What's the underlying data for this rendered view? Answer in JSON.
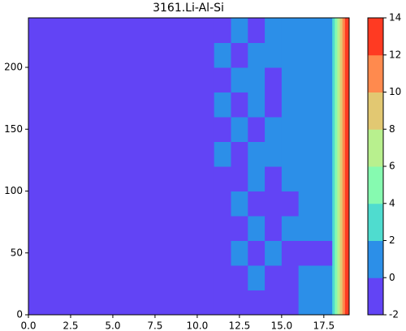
{
  "chart_data": {
    "type": "contour",
    "title": "3161.Li-Al-Si",
    "xbins": [
      0,
      11,
      12,
      13,
      14,
      15,
      16,
      18,
      18.15,
      18.3,
      18.45,
      18.6,
      18.75,
      18.9,
      19
    ],
    "ybins": [
      0,
      20,
      40,
      60,
      80,
      100,
      120,
      140,
      160,
      180,
      200,
      220,
      240
    ],
    "z": [
      [
        -1,
        -1,
        -1,
        -1,
        -1,
        -1,
        1,
        3,
        5,
        7,
        9,
        11,
        13,
        13
      ],
      [
        -1,
        -1,
        -1,
        1,
        -1,
        -1,
        1,
        3,
        5,
        7,
        9,
        11,
        13,
        13
      ],
      [
        -1,
        -1,
        1,
        -1,
        1,
        -1,
        -1,
        3,
        5,
        7,
        9,
        11,
        13,
        13
      ],
      [
        -1,
        -1,
        -1,
        1,
        -1,
        1,
        1,
        3,
        5,
        7,
        9,
        11,
        13,
        13
      ],
      [
        -1,
        -1,
        1,
        -1,
        -1,
        -1,
        1,
        3,
        5,
        7,
        9,
        11,
        13,
        13
      ],
      [
        -1,
        -1,
        -1,
        1,
        -1,
        1,
        1,
        3,
        5,
        7,
        9,
        11,
        13,
        13
      ],
      [
        -1,
        1,
        -1,
        1,
        1,
        1,
        1,
        3,
        5,
        7,
        9,
        11,
        13,
        13
      ],
      [
        -1,
        -1,
        1,
        -1,
        1,
        1,
        1,
        3,
        5,
        7,
        9,
        11,
        13,
        13
      ],
      [
        -1,
        1,
        -1,
        1,
        -1,
        1,
        1,
        3,
        5,
        7,
        9,
        11,
        13,
        13
      ],
      [
        -1,
        -1,
        1,
        1,
        -1,
        1,
        1,
        3,
        5,
        7,
        9,
        11,
        13,
        13
      ],
      [
        -1,
        1,
        -1,
        1,
        1,
        1,
        1,
        3,
        5,
        7,
        9,
        11,
        13,
        13
      ],
      [
        -1,
        -1,
        1,
        -1,
        1,
        1,
        1,
        3,
        5,
        7,
        9,
        11,
        13,
        13
      ]
    ],
    "levels": [
      -2,
      0,
      2,
      4,
      6,
      8,
      10,
      12,
      14
    ],
    "colors": [
      "#6244f5",
      "#2c8fe8",
      "#4fdccf",
      "#86fab0",
      "#b8f08e",
      "#e2c872",
      "#ff8a4e",
      "#ff3a22"
    ],
    "xlim": [
      0,
      19
    ],
    "ylim": [
      0,
      240
    ],
    "xticks": [
      {
        "value": 0,
        "label": "0.0"
      },
      {
        "value": 2.5,
        "label": "2.5"
      },
      {
        "value": 5,
        "label": "5.0"
      },
      {
        "value": 7.5,
        "label": "7.5"
      },
      {
        "value": 10,
        "label": "10.0"
      },
      {
        "value": 12.5,
        "label": "12.5"
      },
      {
        "value": 15,
        "label": "15.0"
      },
      {
        "value": 17.5,
        "label": "17.5"
      }
    ],
    "yticks": [
      0,
      50,
      100,
      150,
      200
    ]
  }
}
